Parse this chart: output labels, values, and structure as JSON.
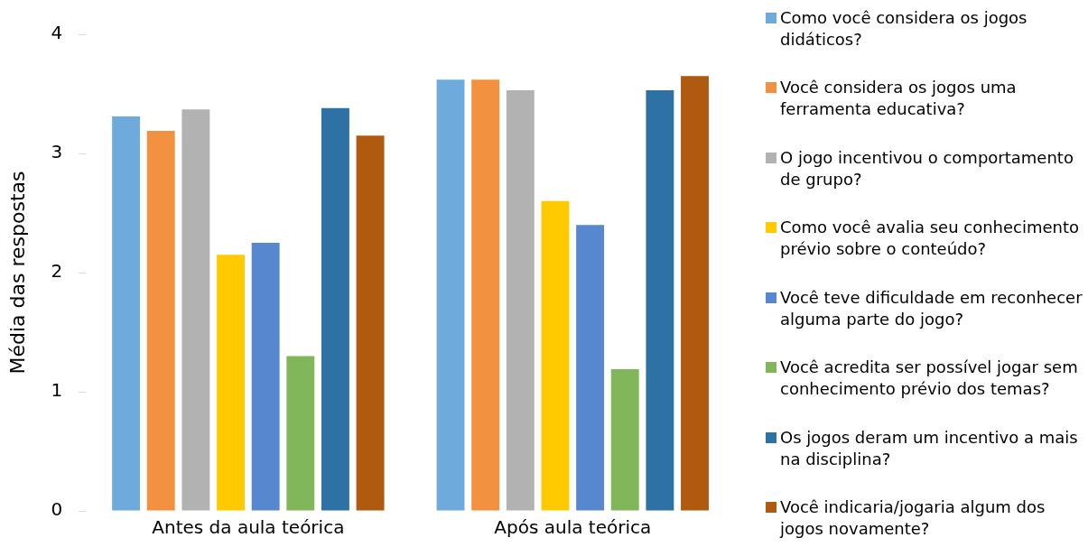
{
  "chart_data": {
    "type": "bar",
    "ylabel": "Média das respostas",
    "categories": [
      "Antes da aula teórica",
      "Após aula teórica"
    ],
    "series": [
      {
        "name": "Como você considera os jogos didáticos?",
        "color": "#6eaadb",
        "values": [
          3.31,
          3.62
        ]
      },
      {
        "name": "Você considera os jogos uma ferramenta educativa?",
        "color": "#f29240",
        "values": [
          3.19,
          3.62
        ]
      },
      {
        "name": "O jogo incentivou o comportamento de grupo?",
        "color": "#b2b2b2",
        "values": [
          3.37,
          3.53
        ]
      },
      {
        "name": "Como você avalia seu conhecimento prévio sobre o conteúdo?",
        "color": "#ffca00",
        "values": [
          2.15,
          2.6
        ]
      },
      {
        "name": "Você teve dificuldade em reconhecer alguma parte do jogo?",
        "color": "#5687cf",
        "values": [
          2.25,
          2.4
        ]
      },
      {
        "name": "Você acredita ser possível jogar sem conhecimento prévio dos temas?",
        "color": "#82b65a",
        "values": [
          1.3,
          1.19
        ]
      },
      {
        "name": "Os jogos deram um incentivo a mais na disciplina?",
        "color": "#2e72a5",
        "values": [
          3.38,
          3.53
        ]
      },
      {
        "name": "Você indicaria/jogaria algum dos jogos novamente?",
        "color": "#b05a10",
        "values": [
          3.15,
          3.65
        ]
      }
    ],
    "ylim": [
      0,
      4
    ],
    "yticks": [
      0,
      1,
      2,
      3,
      4
    ],
    "grid": false,
    "legend": "right"
  }
}
